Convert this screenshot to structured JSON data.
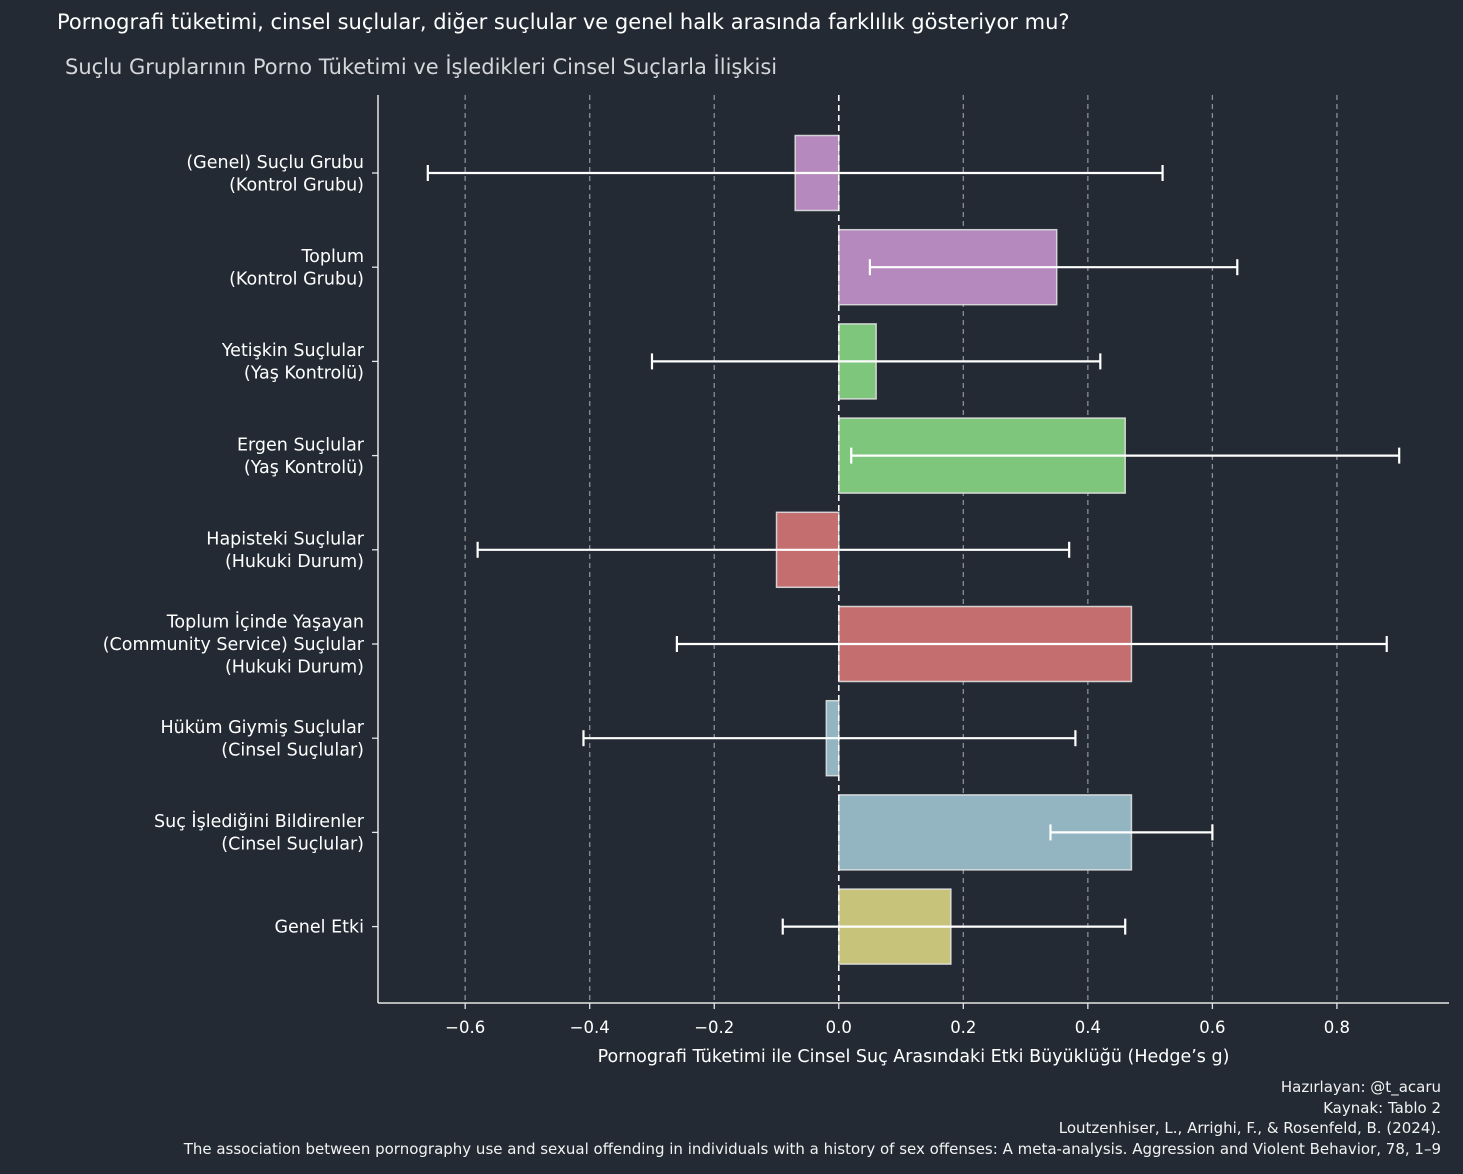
{
  "chart_data": {
    "type": "bar",
    "orientation": "horizontal",
    "title": "Pornografi tüketimi, cinsel suçlular, diğer suçlular ve genel halk arasında farklılık gösteriyor mu?",
    "subtitle": "Suçlu Gruplarının Porno Tüketimi ve İşledikleri Cinsel Suçlarla İlişkisi",
    "xlabel": "Pornografi Tüketimi ile Cinsel Suç Arasındaki Etki Büyüklüğü (Hedge’s g)",
    "ylabel": "",
    "xlim": [
      -0.74,
      0.98
    ],
    "xticks": [
      -0.6,
      -0.4,
      -0.2,
      0.0,
      0.2,
      0.4,
      0.6,
      0.8
    ],
    "xtick_labels": [
      "−0.6",
      "−0.4",
      "−0.2",
      "0.0",
      "0.2",
      "0.4",
      "0.6",
      "0.8"
    ],
    "grid": "x-dashed",
    "reference_line": 0,
    "categories": [
      [
        "(Genel) Suçlu Grubu",
        "(Kontrol Grubu)"
      ],
      [
        "Toplum",
        "(Kontrol Grubu)"
      ],
      [
        "Yetişkin Suçlular",
        "(Yaş Kontrolü)"
      ],
      [
        "Ergen Suçlular",
        "(Yaş Kontrolü)"
      ],
      [
        "Hapisteki Suçlular",
        "(Hukuki Durum)"
      ],
      [
        "Toplum İçinde Yaşayan ",
        "(Community Service) Suçlular",
        "(Hukuki Durum)"
      ],
      [
        "Hüküm Giymiş Suçlular",
        "(Cinsel Suçlular)"
      ],
      [
        "Suç İşlediğini Bildirenler",
        "(Cinsel Suçlular)"
      ],
      [
        "Genel Etki"
      ]
    ],
    "values": [
      -0.07,
      0.35,
      0.06,
      0.46,
      -0.1,
      0.47,
      -0.02,
      0.47,
      0.18
    ],
    "ci_lower": [
      -0.66,
      0.05,
      -0.3,
      0.02,
      -0.58,
      -0.26,
      -0.41,
      0.34,
      -0.09
    ],
    "ci_upper": [
      0.52,
      0.64,
      0.42,
      0.9,
      0.37,
      0.88,
      0.38,
      0.6,
      0.46
    ],
    "colors": [
      "#b589bd",
      "#b589bd",
      "#7dc67b",
      "#7dc67b",
      "#c56e6f",
      "#c56e6f",
      "#92b5c1",
      "#92b5c1",
      "#c8c37a"
    ]
  },
  "credits": {
    "author": "Hazırlayan: @t_acaru",
    "source": "Kaynak: Tablo 2 ",
    "citation_1": "Loutzenhiser, L., Arrighi, F., & Rosenfeld, B. (2024). ",
    "citation_2": "The association between pornography use and sexual offending in individuals with a history of sex offenses: A meta-analysis. Aggression and Violent Behavior, 78, 1–9"
  }
}
